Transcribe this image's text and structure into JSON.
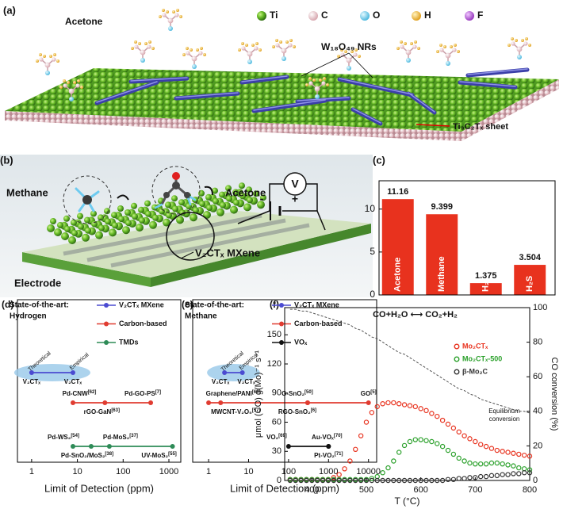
{
  "panel_labels": [
    "(a)",
    "(b)",
    "(c)",
    "(d)",
    "(e)",
    "(f)"
  ],
  "illustration_a": {
    "molecule_label": "Acetone",
    "legend": [
      "Ti",
      "C",
      "O",
      "H",
      "F"
    ],
    "nanorods_label": "W₁₈O₄₉ NRs",
    "sheet_label": "Ti₃C₂Tₓ sheet"
  },
  "illustration_b": {
    "gas_labels": [
      "Methane",
      "Acetone"
    ],
    "meter_label": "V",
    "polarity": [
      "-",
      "+"
    ],
    "electrode_label": "Electrode",
    "film_label": "V₂CTₓ MXene"
  },
  "chart_data": [
    {
      "type": "bar",
      "categories": [
        "Acetone",
        "Methane",
        "H₂",
        "H₂S"
      ],
      "values": [
        11.16,
        9.399,
        1.375,
        3.504
      ],
      "color": "#e8321e",
      "ylim": [
        0,
        13.3
      ],
      "yticks": [
        0,
        5,
        10
      ]
    },
    {
      "type": "range",
      "title": "State-of-the-art:",
      "subtitle": "Hydrogen",
      "xlabel": "Limit of Detection (ppm)",
      "x_log": true,
      "xlim": [
        0.49,
        1820
      ],
      "xticks": [
        1,
        10,
        100,
        1000
      ],
      "series": [
        {
          "name": "V₂CTₓ MXene",
          "color": "#4b4bd1",
          "x": [
            1,
            8
          ],
          "point_labels": [
            "V₂CTₓ",
            "V₂CTₓ"
          ],
          "notes": [
            "Theoretical",
            "Empirical"
          ]
        },
        {
          "name": "Carbon-based",
          "color": "#e03c31",
          "x": [
            8,
            40,
            400
          ],
          "point_labels": [
            "Pd-CNW[62]",
            "rGO-GaN[63]",
            "Pd-GO-PS[7]"
          ]
        },
        {
          "name": "TMDs",
          "color": "#2e8b57",
          "x": [
            8,
            20,
            50,
            1200
          ],
          "point_labels": [
            "Pd-WS₂[54]",
            "Pd-SnO₂/MoS₂[38]",
            "Pd-MoS₂[37]",
            "UV-MoS₂[55]"
          ]
        }
      ]
    },
    {
      "type": "range",
      "title": "State-of-the-art:",
      "subtitle": "Methane",
      "xlabel": "Limit of Detection (ppm)",
      "x_log": true,
      "xlim": [
        0.4,
        16000
      ],
      "xticks": [
        1,
        10,
        100,
        1000,
        10000
      ],
      "series": [
        {
          "name": "V₂CTₓ MXene",
          "color": "#4b4bd1",
          "x": [
            2.5,
            7
          ],
          "point_labels": [
            "V₂CTₓ",
            "V₂CTₓ"
          ],
          "notes": [
            "Theoretical",
            "Empirical"
          ]
        },
        {
          "name": "Carbon-based",
          "color": "#e03c31",
          "x": [
            1,
            2,
            300,
            300,
            10000
          ],
          "point_labels": [
            "Graphene/PANI[60]",
            "MWCNT-V₂O₅[57]",
            "G-SnO₂[50]",
            "RGO-SnO₂[6]",
            "GO[5]"
          ]
        },
        {
          "name": "VOₓ",
          "color": "#111111",
          "x": [
            100,
            1000,
            1000
          ],
          "point_labels": [
            "VO₂[69]",
            "Au-VOₓ[70]",
            "Pt-VO₂[71]"
          ]
        }
      ]
    },
    {
      "type": "scatter",
      "annotation": "CO+H₂O ⟷ CO₂+H₂",
      "xlabel": "T (°C)",
      "ylabel": "μmol (CO) g(Mo)⁻¹ s⁻¹",
      "y2label": "CO conversion (%)",
      "xlim": [
        350,
        800
      ],
      "xticks": [
        400,
        500,
        600,
        700,
        800
      ],
      "ylim": [
        0,
        178
      ],
      "yticks": [
        0,
        30,
        60,
        90,
        120,
        150
      ],
      "y2lim": [
        0,
        100
      ],
      "y2ticks": [
        0,
        20,
        40,
        60,
        80,
        100
      ],
      "legend": "upper right",
      "x": [
        360,
        370,
        380,
        390,
        400,
        410,
        420,
        430,
        440,
        450,
        460,
        470,
        480,
        490,
        500,
        510,
        520,
        530,
        540,
        550,
        560,
        570,
        580,
        590,
        600,
        610,
        620,
        630,
        640,
        650,
        660,
        670,
        680,
        690,
        700,
        710,
        720,
        730,
        740,
        750,
        760,
        770,
        780,
        790,
        800
      ],
      "series": [
        {
          "name": "Mo₂CTₓ",
          "color": "#e8321e",
          "values": [
            1,
            1,
            1,
            1,
            1,
            1,
            1,
            1,
            3,
            6,
            12,
            20,
            32,
            46,
            60,
            70,
            76,
            79,
            80,
            80,
            79,
            78,
            77,
            76,
            74,
            72,
            69,
            66,
            62,
            58,
            54,
            50,
            46,
            43,
            40,
            37,
            35,
            33,
            31,
            30,
            29,
            28,
            27,
            26,
            25
          ]
        },
        {
          "name": "Mo₂CTₓ-500",
          "color": "#2aa02a",
          "values": [
            1,
            1,
            1,
            1,
            1,
            1,
            1,
            1,
            1,
            1,
            1,
            1,
            1,
            1,
            1,
            2,
            4,
            8,
            13,
            20,
            29,
            36,
            40,
            42,
            42,
            41,
            40,
            38,
            35,
            31,
            27,
            23,
            20,
            18,
            17,
            17,
            17,
            18,
            18,
            17,
            16,
            15,
            13,
            12,
            11
          ]
        },
        {
          "name": "β-Mo₂C",
          "color": "#333333",
          "values": [
            0,
            0,
            0,
            0,
            0,
            0,
            0,
            0,
            0,
            0,
            0,
            0,
            0,
            0,
            0,
            0,
            0,
            0,
            0,
            0,
            0,
            0,
            0,
            0,
            0,
            0,
            0,
            0,
            0,
            1,
            1,
            2,
            2,
            3,
            3,
            4,
            4,
            5,
            5,
            6,
            6,
            7,
            7,
            8,
            8
          ]
        },
        {
          "name": "Equilibrium conversion",
          "color": "#555555",
          "axis": "y2",
          "style": "dashed",
          "values": [
            99,
            99,
            98,
            98,
            97,
            96,
            95,
            94,
            93,
            92,
            91,
            90,
            88,
            87,
            85,
            83,
            82,
            80,
            78,
            76,
            74,
            73,
            71,
            69,
            67,
            65,
            63,
            61,
            59,
            57,
            55,
            53,
            52,
            50,
            49,
            47,
            46,
            45,
            44,
            43,
            42,
            41,
            40,
            40,
            39
          ]
        }
      ]
    }
  ]
}
